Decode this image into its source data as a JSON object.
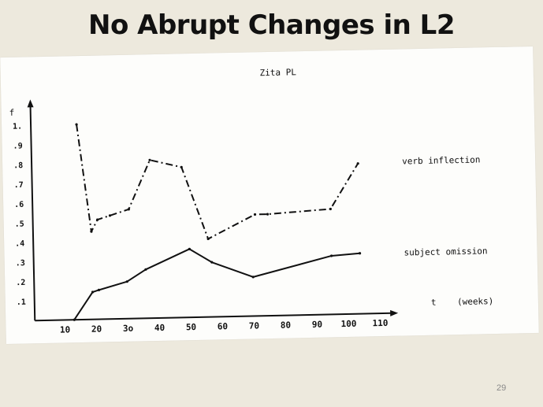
{
  "slide": {
    "title": "No Abrupt Changes in L2",
    "page_number": "29"
  },
  "colors": {
    "background": "#ede9dd",
    "paper": "#fdfdfb",
    "ink": "#111111"
  },
  "chart_data": {
    "type": "line",
    "title": "Zita PL",
    "ylabel": "f",
    "xlabel": "t    (weeks)",
    "xlim": [
      0,
      110
    ],
    "ylim": [
      0,
      1.0
    ],
    "x_ticks": [
      {
        "value": 10,
        "label": "10"
      },
      {
        "value": 20,
        "label": "20"
      },
      {
        "value": 30,
        "label": "3o"
      },
      {
        "value": 40,
        "label": "40"
      },
      {
        "value": 50,
        "label": "50"
      },
      {
        "value": 60,
        "label": "60"
      },
      {
        "value": 70,
        "label": "70"
      },
      {
        "value": 80,
        "label": "80"
      },
      {
        "value": 90,
        "label": "90"
      },
      {
        "value": 100,
        "label": "100"
      },
      {
        "value": 110,
        "label": "110"
      }
    ],
    "y_ticks": [
      {
        "value": 0.1,
        "label": ".1"
      },
      {
        "value": 0.2,
        "label": ".2"
      },
      {
        "value": 0.3,
        "label": ".3"
      },
      {
        "value": 0.4,
        "label": ".4"
      },
      {
        "value": 0.5,
        "label": ".5"
      },
      {
        "value": 0.6,
        "label": ".6"
      },
      {
        "value": 0.7,
        "label": ".7"
      },
      {
        "value": 0.8,
        "label": ".8"
      },
      {
        "value": 0.9,
        "label": ".9"
      },
      {
        "value": 1.0,
        "label": "1."
      }
    ],
    "series": [
      {
        "name": "verb inflection",
        "style": "dash-dot",
        "points": [
          [
            15,
            1.0
          ],
          [
            19,
            0.45
          ],
          [
            21,
            0.51
          ],
          [
            25,
            0.53
          ],
          [
            31,
            0.56
          ],
          [
            38,
            0.81
          ],
          [
            48,
            0.77
          ],
          [
            56,
            0.4
          ],
          [
            71,
            0.52
          ],
          [
            75,
            0.52
          ],
          [
            95,
            0.54
          ],
          [
            104,
            0.77
          ]
        ]
      },
      {
        "name": "subject omission",
        "style": "solid",
        "points": [
          [
            13,
            0.0
          ],
          [
            19,
            0.14
          ],
          [
            21,
            0.15
          ],
          [
            30,
            0.19
          ],
          [
            36,
            0.25
          ],
          [
            50,
            0.35
          ],
          [
            57,
            0.28
          ],
          [
            70,
            0.2
          ],
          [
            95,
            0.3
          ],
          [
            104,
            0.31
          ]
        ]
      }
    ],
    "legend": "inline, right of each line",
    "grid": false
  }
}
